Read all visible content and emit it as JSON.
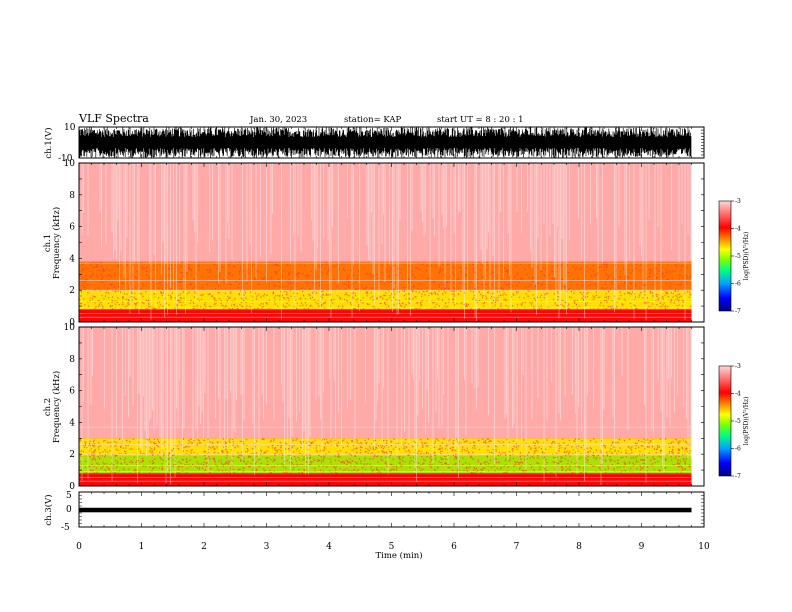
{
  "header": {
    "title": "VLF Spectra",
    "date": "Jan. 30, 2023",
    "station": "station= KAP",
    "start_time": "start UT =  8 : 20 : 1"
  },
  "colors": {
    "spectrogram_background": "#ff2a2a",
    "colormap": [
      "#000080",
      "#0000ff",
      "#00a0ff",
      "#00ff60",
      "#a0ff00",
      "#ffff00",
      "#ff8000",
      "#ff0000",
      "#ffc0c0"
    ],
    "waveform": "#000000"
  },
  "chart_data": [
    {
      "type": "line",
      "panel": "ch1-waveform",
      "ylabel": "ch.1(V)",
      "ylim": [
        -10,
        10
      ],
      "y_ticks": [
        "10",
        "-10"
      ],
      "xlim": [
        0,
        9.8
      ],
      "note": "dense waveform saturating between -10 and 10 V"
    },
    {
      "type": "heatmap",
      "panel": "ch1-spectrogram",
      "ylabel": "ch.1 Frequency (kHz)",
      "ylim": [
        0,
        10
      ],
      "y_ticks": [
        "0",
        "2",
        "4",
        "6",
        "8",
        "10"
      ],
      "xlim": [
        0,
        9.8
      ],
      "colorbar": {
        "label": "log(PSD)(V²/Hz)",
        "range": [
          -7,
          -3
        ],
        "ticks": [
          "-3",
          "-4",
          "-5",
          "-6",
          "-7"
        ]
      },
      "bands": [
        {
          "freq_khz": [
            0,
            0.8
          ],
          "level": -3.6
        },
        {
          "freq_khz": [
            0.8,
            2.0
          ],
          "level": -4.7
        },
        {
          "freq_khz": [
            2.0,
            3.8
          ],
          "level": -4.3
        },
        {
          "freq_khz": [
            3.8,
            10
          ],
          "level": -3.3
        }
      ]
    },
    {
      "type": "heatmap",
      "panel": "ch2-spectrogram",
      "ylabel": "ch.2 Frequency (kHz)",
      "ylim": [
        0,
        10
      ],
      "y_ticks": [
        "0",
        "2",
        "4",
        "6",
        "8",
        "10"
      ],
      "xlim": [
        0,
        9.8
      ],
      "colorbar": {
        "label": "log(PSD)(V²/Hz)",
        "range": [
          -7,
          -3
        ],
        "ticks": [
          "-3",
          "-4",
          "-5",
          "-6",
          "-7"
        ]
      },
      "bands": [
        {
          "freq_khz": [
            0,
            0.8
          ],
          "level": -3.6
        },
        {
          "freq_khz": [
            0.8,
            1.9
          ],
          "level": -5.0
        },
        {
          "freq_khz": [
            1.9,
            3.0
          ],
          "level": -4.6
        },
        {
          "freq_khz": [
            3.0,
            10
          ],
          "level": -3.3
        }
      ]
    },
    {
      "type": "line",
      "panel": "ch3-waveform",
      "ylabel": "ch.3(V)",
      "ylim": [
        -5,
        5
      ],
      "y_ticks": [
        "5",
        "0",
        "-5"
      ],
      "xlim": [
        0,
        9.8
      ],
      "value_band": [
        -0.8,
        0.5
      ]
    }
  ],
  "x_axis": {
    "label": "Time (min)",
    "range": [
      0,
      10
    ],
    "ticks": [
      "0",
      "1",
      "2",
      "3",
      "4",
      "5",
      "6",
      "7",
      "8",
      "9",
      "10"
    ]
  }
}
